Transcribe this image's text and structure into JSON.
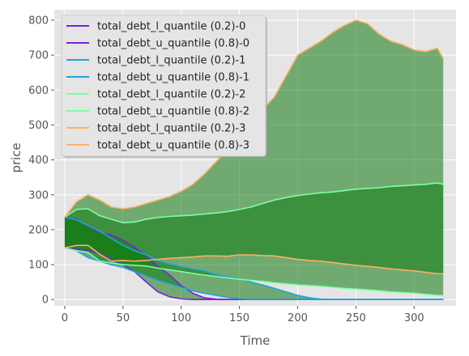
{
  "chart_data": {
    "type": "line",
    "title": "",
    "xlabel": "Time",
    "ylabel": "price",
    "xlim": [
      -9,
      336
    ],
    "ylim": [
      -18,
      830
    ],
    "xticks": [
      0,
      50,
      100,
      150,
      200,
      250,
      300
    ],
    "yticks": [
      0,
      100,
      200,
      300,
      400,
      500,
      600,
      700,
      800
    ],
    "grid": true,
    "legend_position": "top-left",
    "x": [
      0,
      10,
      20,
      30,
      40,
      50,
      60,
      70,
      80,
      90,
      100,
      110,
      120,
      130,
      140,
      150,
      160,
      170,
      180,
      190,
      200,
      210,
      220,
      230,
      240,
      250,
      260,
      270,
      280,
      290,
      300,
      310,
      320,
      325
    ],
    "series": [
      {
        "name": "total_debt_l_quantile (0.2)-0",
        "color": "#7b22d8",
        "values": [
          148,
          145,
          140,
          132,
          115,
          100,
          80,
          50,
          22,
          8,
          2,
          0,
          0,
          0,
          0,
          0,
          0,
          0,
          0,
          0,
          0,
          0,
          0,
          0,
          0,
          0,
          0,
          0,
          0,
          0,
          0,
          0,
          0,
          0
        ]
      },
      {
        "name": "total_debt_u_quantile (0.8)-0",
        "color": "#7b22d8",
        "values": [
          236,
          230,
          210,
          192,
          185,
          170,
          150,
          125,
          95,
          70,
          40,
          18,
          5,
          1,
          0,
          0,
          0,
          0,
          0,
          0,
          0,
          0,
          0,
          0,
          0,
          0,
          0,
          0,
          0,
          0,
          0,
          0,
          0,
          0
        ]
      },
      {
        "name": "total_debt_l_quantile (0.2)-1",
        "color": "#1aa6e0",
        "values": [
          148,
          140,
          120,
          110,
          100,
          92,
          80,
          68,
          55,
          45,
          35,
          25,
          18,
          12,
          6,
          2,
          0,
          0,
          0,
          0,
          0,
          0,
          0,
          0,
          0,
          0,
          0,
          0,
          0,
          0,
          0,
          0,
          0,
          0
        ]
      },
      {
        "name": "total_debt_u_quantile (0.8)-1",
        "color": "#1aa6e0",
        "values": [
          236,
          228,
          212,
          196,
          175,
          155,
          140,
          128,
          112,
          102,
          95,
          88,
          82,
          72,
          65,
          60,
          50,
          42,
          32,
          22,
          12,
          5,
          1,
          0,
          0,
          0,
          0,
          0,
          0,
          0,
          0,
          0,
          0,
          0
        ]
      },
      {
        "name": "total_debt_l_quantile (0.2)-2",
        "color": "#7dffa6",
        "values": [
          148,
          140,
          135,
          110,
          105,
          100,
          98,
          96,
          90,
          85,
          80,
          75,
          70,
          66,
          62,
          58,
          55,
          52,
          48,
          45,
          42,
          40,
          38,
          35,
          32,
          30,
          28,
          25,
          22,
          20,
          18,
          15,
          12,
          12
        ]
      },
      {
        "name": "total_debt_u_quantile (0.8)-2",
        "color": "#7dffa6",
        "values": [
          236,
          258,
          260,
          240,
          230,
          220,
          222,
          230,
          235,
          238,
          240,
          242,
          245,
          248,
          252,
          258,
          265,
          275,
          285,
          292,
          298,
          302,
          306,
          308,
          312,
          316,
          318,
          320,
          324,
          326,
          328,
          330,
          334,
          330
        ]
      },
      {
        "name": "total_debt_l_quantile (0.2)-3",
        "color": "#ffb060",
        "values": [
          148,
          155,
          155,
          130,
          110,
          112,
          110,
          112,
          115,
          118,
          120,
          122,
          125,
          125,
          124,
          128,
          128,
          126,
          125,
          120,
          115,
          112,
          110,
          106,
          102,
          98,
          95,
          92,
          88,
          85,
          82,
          78,
          74,
          74
        ]
      },
      {
        "name": "total_debt_u_quantile (0.8)-3",
        "color": "#ffb060",
        "values": [
          236,
          280,
          300,
          285,
          265,
          260,
          265,
          275,
          285,
          295,
          310,
          330,
          360,
          395,
          430,
          470,
          515,
          545,
          580,
          640,
          700,
          720,
          740,
          765,
          785,
          800,
          790,
          760,
          740,
          730,
          715,
          710,
          720,
          690
        ]
      }
    ],
    "bands": [
      {
        "lower": "total_debt_l_quantile (0.2)-0",
        "upper": "total_debt_u_quantile (0.8)-0",
        "color": "#137a13",
        "opacity": 0.55
      },
      {
        "lower": "total_debt_l_quantile (0.2)-1",
        "upper": "total_debt_u_quantile (0.8)-1",
        "color": "#137a13",
        "opacity": 0.55
      },
      {
        "lower": "total_debt_l_quantile (0.2)-2",
        "upper": "total_debt_u_quantile (0.8)-2",
        "color": "#137a13",
        "opacity": 0.55
      },
      {
        "lower": "total_debt_l_quantile (0.2)-3",
        "upper": "total_debt_u_quantile (0.8)-3",
        "color": "#137a13",
        "opacity": 0.55
      }
    ],
    "colors": {
      "plot_background": "#e5e5e5",
      "grid": "#ffffff",
      "band": "#137a13"
    }
  }
}
